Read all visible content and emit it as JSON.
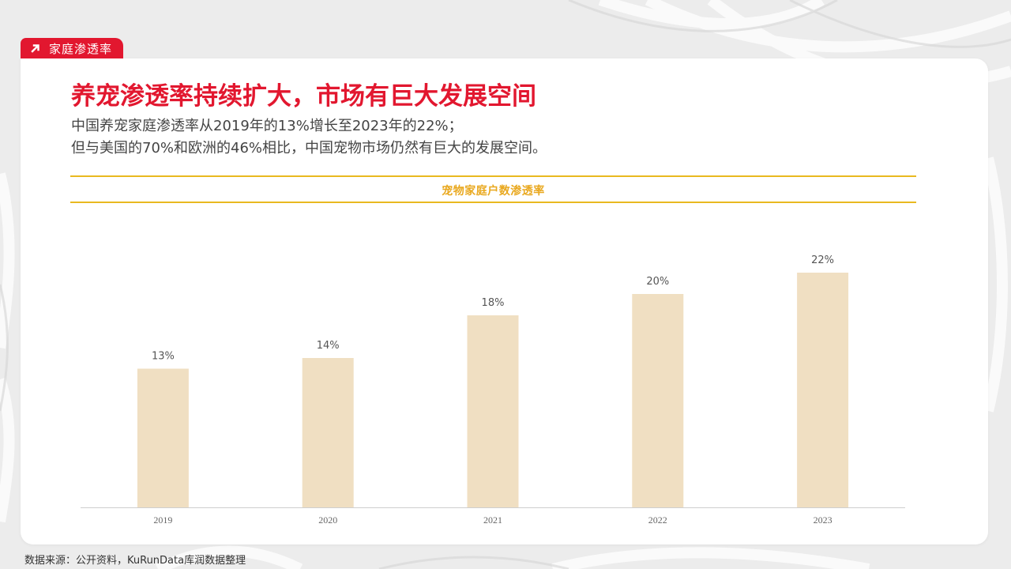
{
  "section_tag": {
    "label": "家庭渗透率"
  },
  "headline": "养宠渗透率持续扩大，市场有巨大发展空间",
  "subtitle": {
    "line1": "中国养宠家庭渗透率从2019年的13%增长至2023年的22%；",
    "line2": "但与美国的70%和欧洲的46%相比，中国宠物市场仍然有巨大的发展空间。"
  },
  "source_note": "数据来源：公开资料，KuRunData库润数据整理",
  "colors": {
    "accent_red": "#e2172f",
    "band_gold": "#e9b920",
    "band_title": "#e9a81e",
    "bar_fill": "#f0dfc2"
  },
  "chart_data": {
    "type": "bar",
    "title": "宠物家庭户数渗透率",
    "categories": [
      "2019",
      "2020",
      "2021",
      "2022",
      "2023"
    ],
    "values": [
      13,
      14,
      18,
      20,
      22
    ],
    "value_labels": [
      "13%",
      "14%",
      "18%",
      "20%",
      "22%"
    ],
    "xlabel": "",
    "ylabel": "",
    "ylim": [
      0,
      22
    ],
    "grid": false,
    "legend": "none"
  }
}
